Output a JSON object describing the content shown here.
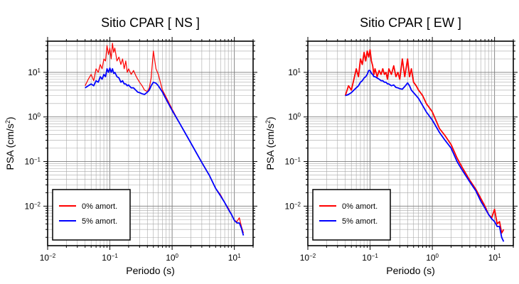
{
  "chart_data": [
    {
      "type": "line",
      "title": "Sitio CPAR [ NS ]",
      "xlabel": "Periodo (s)",
      "ylabel_main": "PSA (cm/s",
      "ylabel_sup": "2",
      "ylabel_close": ")",
      "x_scale": "log",
      "y_scale": "log",
      "xlim": [
        0.01,
        20
      ],
      "ylim": [
        0.0013,
        50
      ],
      "grid": true,
      "legend_position": "bottom-left",
      "x_ticks": [
        {
          "value": 0.01,
          "base": "10",
          "exp": "−2"
        },
        {
          "value": 0.1,
          "base": "10",
          "exp": "−1"
        },
        {
          "value": 1,
          "base": "10",
          "exp": "0"
        },
        {
          "value": 10,
          "base": "10",
          "exp": "1"
        }
      ],
      "y_ticks": [
        {
          "value": 0.01,
          "base": "10",
          "exp": "−2"
        },
        {
          "value": 0.1,
          "base": "10",
          "exp": "−1"
        },
        {
          "value": 1,
          "base": "10",
          "exp": "0"
        },
        {
          "value": 10,
          "base": "10",
          "exp": "1"
        }
      ],
      "series": [
        {
          "name": "0% amort.",
          "color": "#ff0000",
          "x": [
            0.04,
            0.045,
            0.05,
            0.055,
            0.06,
            0.065,
            0.07,
            0.075,
            0.08,
            0.085,
            0.09,
            0.095,
            0.1,
            0.105,
            0.11,
            0.115,
            0.12,
            0.13,
            0.14,
            0.15,
            0.16,
            0.17,
            0.18,
            0.19,
            0.2,
            0.22,
            0.24,
            0.26,
            0.28,
            0.3,
            0.33,
            0.36,
            0.4,
            0.43,
            0.46,
            0.5,
            0.55,
            0.6,
            0.7,
            0.8,
            1.0,
            1.3,
            1.6,
            2.0,
            2.5,
            3.0,
            4.0,
            5.0,
            6.0,
            7.0,
            8.0,
            9.0,
            10.0,
            11.0,
            12.0,
            13.0,
            14.0
          ],
          "y": [
            5.0,
            7.0,
            9.0,
            6.5,
            12.0,
            10.0,
            15.0,
            12.0,
            20.0,
            18.0,
            40.0,
            25.0,
            35.0,
            20.0,
            45.0,
            28.0,
            35.0,
            18.0,
            22.0,
            15.0,
            20.0,
            12.0,
            18.0,
            10.0,
            12.0,
            9.0,
            11.0,
            8.5,
            7.0,
            6.0,
            5.0,
            4.0,
            3.7,
            4.5,
            7.5,
            30.0,
            12.0,
            9.0,
            4.0,
            2.8,
            1.5,
            0.75,
            0.45,
            0.26,
            0.15,
            0.095,
            0.048,
            0.025,
            0.018,
            0.012,
            0.009,
            0.0065,
            0.0048,
            0.0045,
            0.0055,
            0.0035,
            0.0025
          ]
        },
        {
          "name": "5% amort.",
          "color": "#0000ff",
          "x": [
            0.04,
            0.045,
            0.05,
            0.055,
            0.06,
            0.065,
            0.07,
            0.075,
            0.08,
            0.085,
            0.09,
            0.095,
            0.1,
            0.105,
            0.11,
            0.115,
            0.12,
            0.13,
            0.14,
            0.15,
            0.16,
            0.17,
            0.18,
            0.19,
            0.2,
            0.22,
            0.24,
            0.26,
            0.28,
            0.3,
            0.33,
            0.36,
            0.4,
            0.43,
            0.46,
            0.5,
            0.55,
            0.6,
            0.7,
            0.8,
            1.0,
            1.3,
            1.6,
            2.0,
            2.5,
            3.0,
            4.0,
            5.0,
            6.0,
            7.0,
            8.0,
            9.0,
            10.0,
            11.0,
            12.0,
            13.0,
            14.0
          ],
          "y": [
            4.5,
            5.0,
            5.5,
            5.0,
            6.5,
            6.0,
            8.0,
            7.0,
            9.0,
            8.0,
            12.0,
            10.0,
            12.5,
            10.0,
            12.0,
            9.5,
            10.0,
            8.0,
            7.5,
            6.0,
            6.5,
            5.5,
            5.5,
            5.0,
            5.2,
            4.5,
            4.5,
            4.0,
            3.6,
            3.5,
            3.3,
            3.2,
            3.6,
            4.0,
            5.0,
            6.0,
            5.7,
            5.0,
            3.6,
            2.5,
            1.4,
            0.75,
            0.45,
            0.26,
            0.15,
            0.095,
            0.048,
            0.025,
            0.017,
            0.012,
            0.0085,
            0.0065,
            0.0048,
            0.0042,
            0.0042,
            0.0032,
            0.0022
          ]
        }
      ]
    },
    {
      "type": "line",
      "title": "Sitio CPAR [ EW ]",
      "xlabel": "Periodo (s)",
      "ylabel_main": "PSA (cm/s",
      "ylabel_sup": "2",
      "ylabel_close": ")",
      "x_scale": "log",
      "y_scale": "log",
      "xlim": [
        0.01,
        20
      ],
      "ylim": [
        0.0013,
        50
      ],
      "grid": true,
      "legend_position": "bottom-left",
      "x_ticks": [
        {
          "value": 0.01,
          "base": "10",
          "exp": "−2"
        },
        {
          "value": 0.1,
          "base": "10",
          "exp": "−1"
        },
        {
          "value": 1,
          "base": "10",
          "exp": "0"
        },
        {
          "value": 10,
          "base": "10",
          "exp": "1"
        }
      ],
      "y_ticks": [
        {
          "value": 0.01,
          "base": "10",
          "exp": "−2"
        },
        {
          "value": 0.1,
          "base": "10",
          "exp": "−1"
        },
        {
          "value": 1,
          "base": "10",
          "exp": "0"
        },
        {
          "value": 10,
          "base": "10",
          "exp": "1"
        }
      ],
      "series": [
        {
          "name": "0% amort.",
          "color": "#ff0000",
          "x": [
            0.04,
            0.045,
            0.05,
            0.055,
            0.06,
            0.065,
            0.07,
            0.075,
            0.08,
            0.085,
            0.09,
            0.095,
            0.1,
            0.105,
            0.11,
            0.115,
            0.12,
            0.13,
            0.14,
            0.15,
            0.16,
            0.17,
            0.18,
            0.19,
            0.2,
            0.22,
            0.24,
            0.26,
            0.28,
            0.3,
            0.33,
            0.36,
            0.4,
            0.43,
            0.46,
            0.5,
            0.55,
            0.6,
            0.7,
            0.8,
            1.0,
            1.3,
            1.6,
            2.0,
            2.5,
            3.0,
            4.0,
            5.0,
            6.0,
            7.0,
            8.0,
            9.0,
            10.0,
            11.0,
            12.0,
            13.0,
            14.0
          ],
          "y": [
            3.0,
            5.0,
            4.0,
            7.0,
            12.0,
            8.0,
            20.0,
            15.0,
            28.0,
            18.0,
            30.0,
            22.0,
            32.0,
            18.0,
            14.0,
            9.0,
            12.0,
            8.0,
            11.0,
            9.0,
            12.0,
            9.0,
            10.0,
            7.0,
            12.0,
            9.0,
            14.0,
            8.0,
            10.0,
            7.0,
            20.0,
            8.0,
            20.0,
            8.0,
            12.0,
            6.0,
            5.0,
            4.0,
            3.0,
            2.0,
            1.3,
            0.55,
            0.38,
            0.24,
            0.12,
            0.075,
            0.038,
            0.024,
            0.015,
            0.01,
            0.0065,
            0.0055,
            0.0085,
            0.004,
            0.0045,
            0.0025,
            0.003
          ]
        },
        {
          "name": "5% amort.",
          "color": "#0000ff",
          "x": [
            0.04,
            0.045,
            0.05,
            0.055,
            0.06,
            0.065,
            0.07,
            0.075,
            0.08,
            0.085,
            0.09,
            0.095,
            0.1,
            0.105,
            0.11,
            0.115,
            0.12,
            0.13,
            0.14,
            0.15,
            0.16,
            0.17,
            0.18,
            0.19,
            0.2,
            0.22,
            0.24,
            0.26,
            0.28,
            0.3,
            0.33,
            0.36,
            0.4,
            0.43,
            0.46,
            0.5,
            0.55,
            0.6,
            0.7,
            0.8,
            1.0,
            1.3,
            1.6,
            2.0,
            2.5,
            3.0,
            4.0,
            5.0,
            6.0,
            7.0,
            8.0,
            9.0,
            10.0,
            11.0,
            12.0,
            13.0,
            14.0
          ],
          "y": [
            3.0,
            3.2,
            3.5,
            4.0,
            4.5,
            5.0,
            6.0,
            6.5,
            7.5,
            8.0,
            9.0,
            11.0,
            11.0,
            9.5,
            9.0,
            8.0,
            8.0,
            7.5,
            7.0,
            6.5,
            6.5,
            6.0,
            6.0,
            5.5,
            5.5,
            5.0,
            5.2,
            4.6,
            4.5,
            4.3,
            4.2,
            4.8,
            5.8,
            5.0,
            4.0,
            3.5,
            3.0,
            2.6,
            1.8,
            1.3,
            0.85,
            0.45,
            0.3,
            0.2,
            0.1,
            0.065,
            0.035,
            0.022,
            0.013,
            0.009,
            0.0065,
            0.0052,
            0.0045,
            0.0035,
            0.0035,
            0.002,
            0.0016
          ]
        }
      ]
    }
  ]
}
